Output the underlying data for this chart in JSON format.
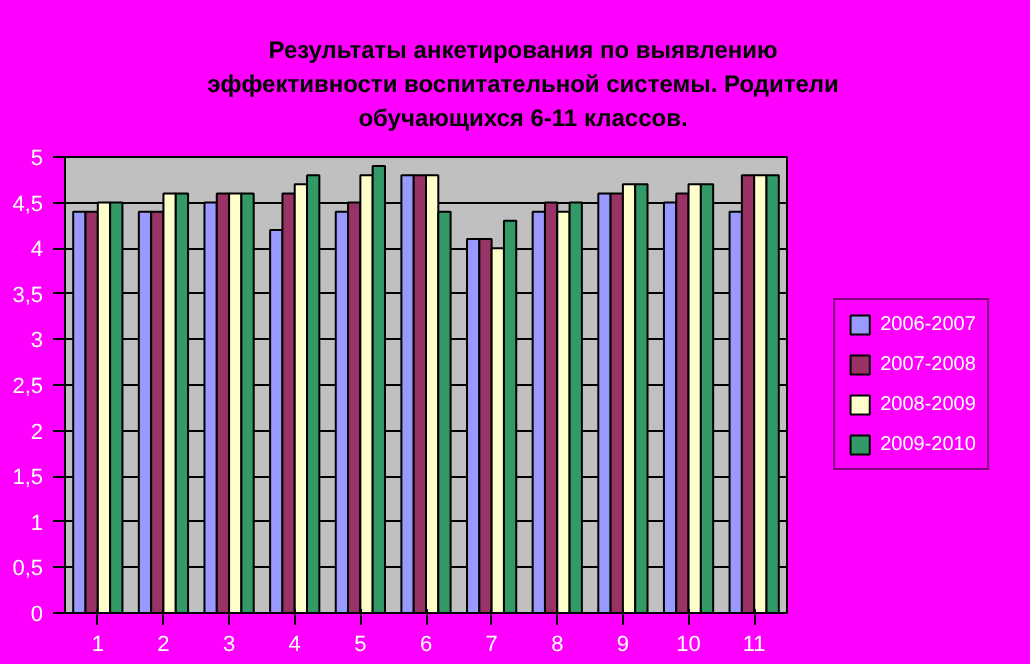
{
  "chart_data": {
    "type": "bar",
    "title": "Результаты анкетирования по выявлению эффективности воспитательной системы. Родители обучающихся 6-11 классов.",
    "categories": [
      "1",
      "2",
      "3",
      "4",
      "5",
      "6",
      "7",
      "8",
      "9",
      "10",
      "11"
    ],
    "series": [
      {
        "name": "2006-2007",
        "color": "#9999ff",
        "values": [
          4.4,
          4.4,
          4.5,
          4.2,
          4.4,
          4.8,
          4.1,
          4.4,
          4.6,
          4.5,
          4.4
        ]
      },
      {
        "name": "2007-2008",
        "color": "#993366",
        "values": [
          4.4,
          4.4,
          4.6,
          4.6,
          4.5,
          4.8,
          4.1,
          4.5,
          4.6,
          4.6,
          4.8
        ]
      },
      {
        "name": "2008-2009",
        "color": "#ffffcc",
        "values": [
          4.5,
          4.6,
          4.6,
          4.7,
          4.8,
          4.8,
          4.0,
          4.4,
          4.7,
          4.7,
          4.8
        ]
      },
      {
        "name": "2009-2010",
        "color": "#339966",
        "values": [
          4.5,
          4.6,
          4.6,
          4.8,
          4.9,
          4.4,
          4.3,
          4.5,
          4.7,
          4.7,
          4.8
        ]
      }
    ],
    "ylim": [
      0,
      5
    ],
    "yticks": [
      0,
      {
        "value": 0.5,
        "label": "0,5"
      },
      1,
      {
        "value": 1.5,
        "label": "1,5"
      },
      2,
      {
        "value": 2.5,
        "label": "2,5"
      },
      3,
      {
        "value": 3.5,
        "label": "3,5"
      },
      4,
      {
        "value": 4.5,
        "label": "4,5"
      },
      5
    ],
    "grid": "y",
    "legend": "right"
  }
}
